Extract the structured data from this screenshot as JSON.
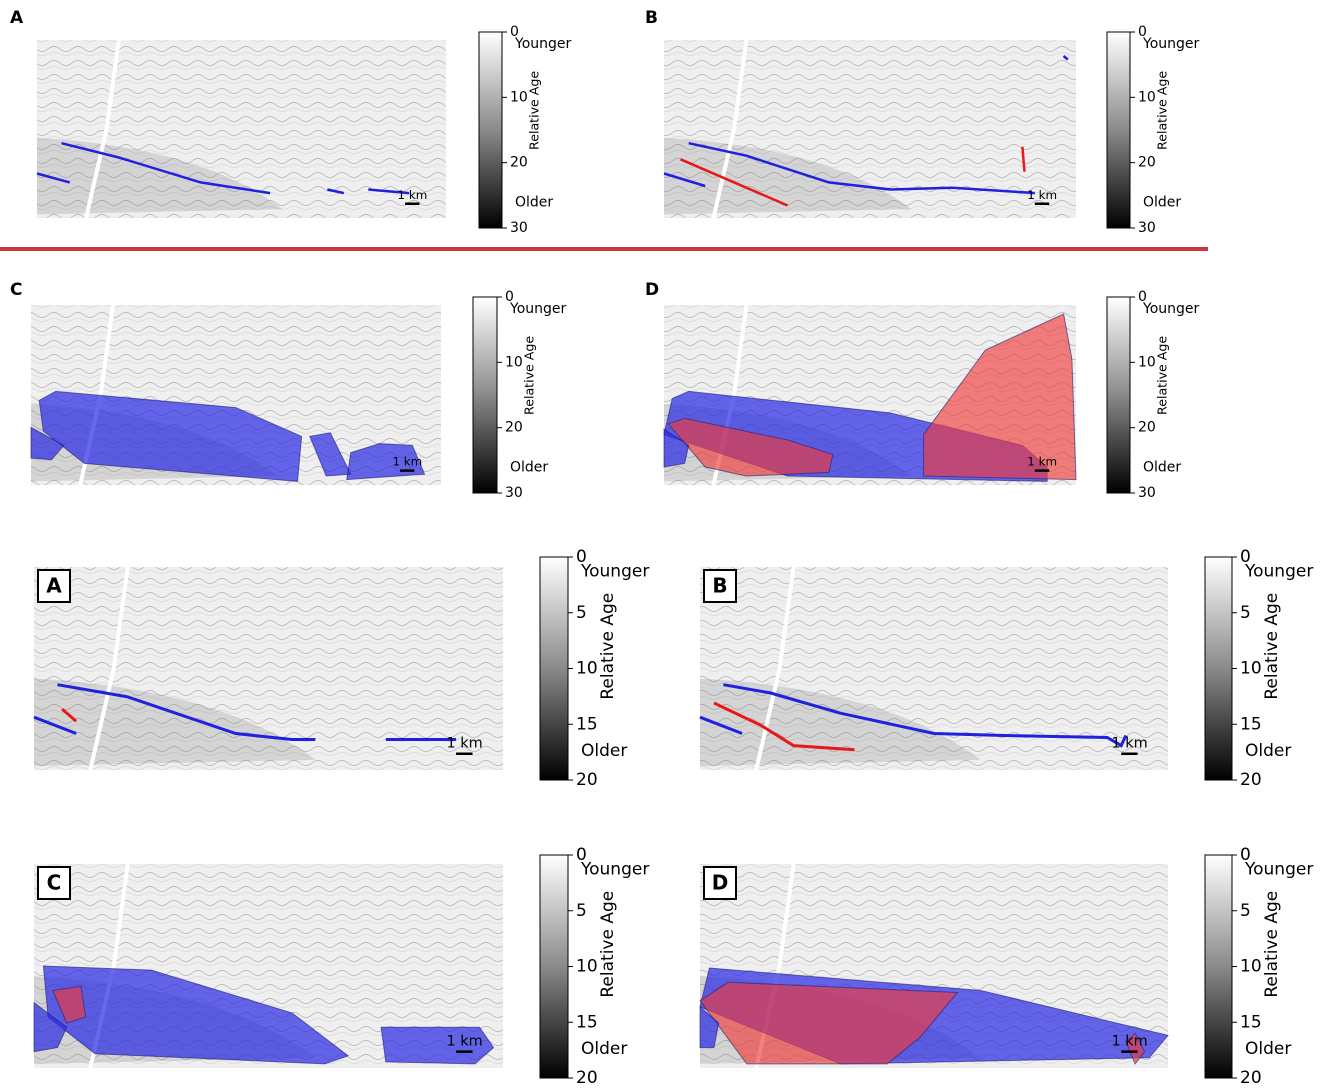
{
  "panels": [
    {
      "label": "A",
      "scale": "1 km",
      "colorbar": {
        "title": "Relative Age",
        "top": "Younger",
        "bottom": "Older",
        "lim": [
          0,
          30
        ],
        "ticks": [
          0,
          10,
          20,
          30
        ]
      }
    },
    {
      "label": "B",
      "scale": "1 km",
      "colorbar": {
        "title": "Relative Age",
        "top": "Younger",
        "bottom": "Older",
        "lim": [
          0,
          30
        ],
        "ticks": [
          0,
          10,
          20,
          30
        ]
      }
    },
    {
      "label": "C",
      "scale": "1 km",
      "colorbar": {
        "title": "Relative Age",
        "top": "Younger",
        "bottom": "Older",
        "lim": [
          0,
          30
        ],
        "ticks": [
          0,
          10,
          20,
          30
        ]
      }
    },
    {
      "label": "D",
      "scale": "1 km",
      "colorbar": {
        "title": "Relative Age",
        "top": "Younger",
        "bottom": "Older",
        "lim": [
          0,
          30
        ],
        "ticks": [
          0,
          10,
          20,
          30
        ]
      }
    },
    {
      "label": "A",
      "scale": "1 km",
      "colorbar": {
        "title": "Relative Age",
        "top": "Younger",
        "bottom": "Older",
        "lim": [
          0,
          20
        ],
        "ticks": [
          0,
          5,
          10,
          15,
          20
        ]
      }
    },
    {
      "label": "B",
      "scale": "1 km",
      "colorbar": {
        "title": "Relative Age",
        "top": "Younger",
        "bottom": "Older",
        "lim": [
          0,
          20
        ],
        "ticks": [
          0,
          5,
          10,
          15,
          20
        ]
      }
    },
    {
      "label": "C",
      "scale": "1 km",
      "colorbar": {
        "title": "Relative Age",
        "top": "Younger",
        "bottom": "Older",
        "lim": [
          0,
          20
        ],
        "ticks": [
          0,
          5,
          10,
          15,
          20
        ]
      }
    },
    {
      "label": "D",
      "scale": "1 km",
      "colorbar": {
        "title": "Relative Age",
        "top": "Younger",
        "bottom": "Older",
        "lim": [
          0,
          20
        ],
        "ticks": [
          0,
          5,
          10,
          15,
          20
        ]
      }
    }
  ]
}
